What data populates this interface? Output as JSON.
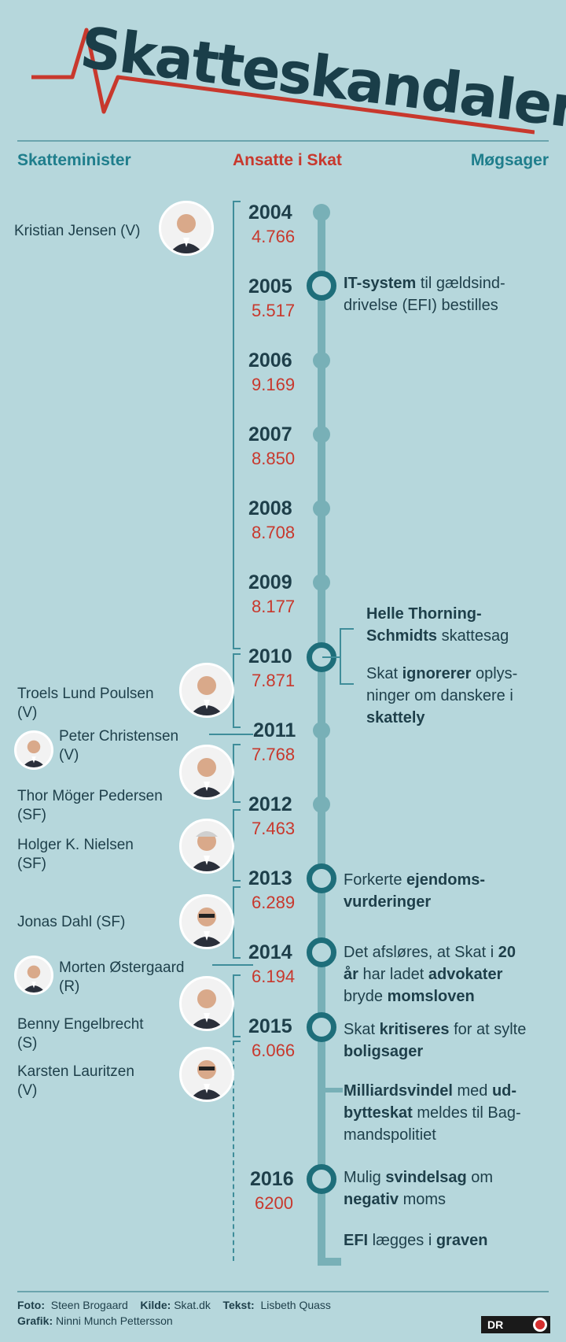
{
  "title": "Skatteskandaler",
  "columns": {
    "minister": "Skatteminister",
    "ansatte": "Ansatte i Skat",
    "moegsager": "Møgsager"
  },
  "colors": {
    "accent_red": "#c8382d",
    "accent_teal": "#1f7e8c",
    "background": "#b6d7dc"
  },
  "years": [
    {
      "year": "2004",
      "staff": "4.766"
    },
    {
      "year": "2005",
      "staff": "5.517"
    },
    {
      "year": "2006",
      "staff": "9.169"
    },
    {
      "year": "2007",
      "staff": "8.850"
    },
    {
      "year": "2008",
      "staff": "8.708"
    },
    {
      "year": "2009",
      "staff": "8.177"
    },
    {
      "year": "2010",
      "staff": "7.871"
    },
    {
      "year": "2011",
      "staff": "7.768"
    },
    {
      "year": "2012",
      "staff": "7.463"
    },
    {
      "year": "2013",
      "staff": "6.289"
    },
    {
      "year": "2014",
      "staff": "6.194"
    },
    {
      "year": "2015",
      "staff": "6.066"
    },
    {
      "year": "2016",
      "staff": "6200"
    }
  ],
  "ministers": [
    {
      "name": "Kristian Jensen (V)"
    },
    {
      "name": "Troels Lund Poulsen",
      "party": "(V)"
    },
    {
      "name": "Peter Christensen",
      "party": "(V)"
    },
    {
      "name": "Thor Möger Pedersen",
      "party": "(SF)"
    },
    {
      "name": "Holger K. Nielsen",
      "party": "(SF)"
    },
    {
      "name": "Jonas Dahl (SF)"
    },
    {
      "name": "Morten Østergaard",
      "party": "(R)"
    },
    {
      "name": "Benny Engelbrecht",
      "party": "(S)"
    },
    {
      "name": "Karsten Lauritzen",
      "party": "(V)"
    }
  ],
  "events": {
    "e2005": {
      "b1": "IT-system",
      "t1": " til gældsind-",
      "t2": "drivelse (EFI) bestilles"
    },
    "e2010a": {
      "b1": "Helle Thorning-",
      "b2": "Schmidts",
      "t1": " skattesag"
    },
    "e2010b": {
      "t1": "Skat ",
      "b1": "ignorerer",
      "t2": " oplys-",
      "t3": "ninger om danskere i",
      "b2": "skattely"
    },
    "e2013": {
      "t1": "Forkerte ",
      "b1": "ejendoms-",
      "b2": "vurderinger"
    },
    "e2014": {
      "t1": "Det afsløres, at Skat i ",
      "b1": "20",
      "b2": "år",
      "t2": " har ladet ",
      "b3": "advokater",
      "t3": "bryde ",
      "b4": "momsloven"
    },
    "e2015": {
      "t1": "Skat ",
      "b1": "kritiseres",
      "t2": " for at sylte",
      "b2": "boligsager"
    },
    "e2015b": {
      "b1": "Milliardsvindel",
      "t1": " med ",
      "b2": "ud-",
      "b3": "bytteskat",
      "t2": " meldes til Bag-",
      "t3": "mandspolitiet"
    },
    "e2016": {
      "t1": "Mulig ",
      "b1": "svindelsag",
      "t2": " om",
      "b2": "negativ",
      "t3": " moms"
    },
    "eEnd": {
      "b1": "EFI",
      "t1": " lægges i ",
      "b2": "graven"
    }
  },
  "footer": {
    "foto_label": "Foto:",
    "foto": "Steen Brogaard",
    "kilde_label": "Kilde:",
    "kilde": "Skat.dk",
    "tekst_label": "Tekst:",
    "tekst": "Lisbeth Quass",
    "grafik_label": "Grafik:",
    "grafik": "Ninni Munch Pettersson",
    "logo": "DR"
  }
}
